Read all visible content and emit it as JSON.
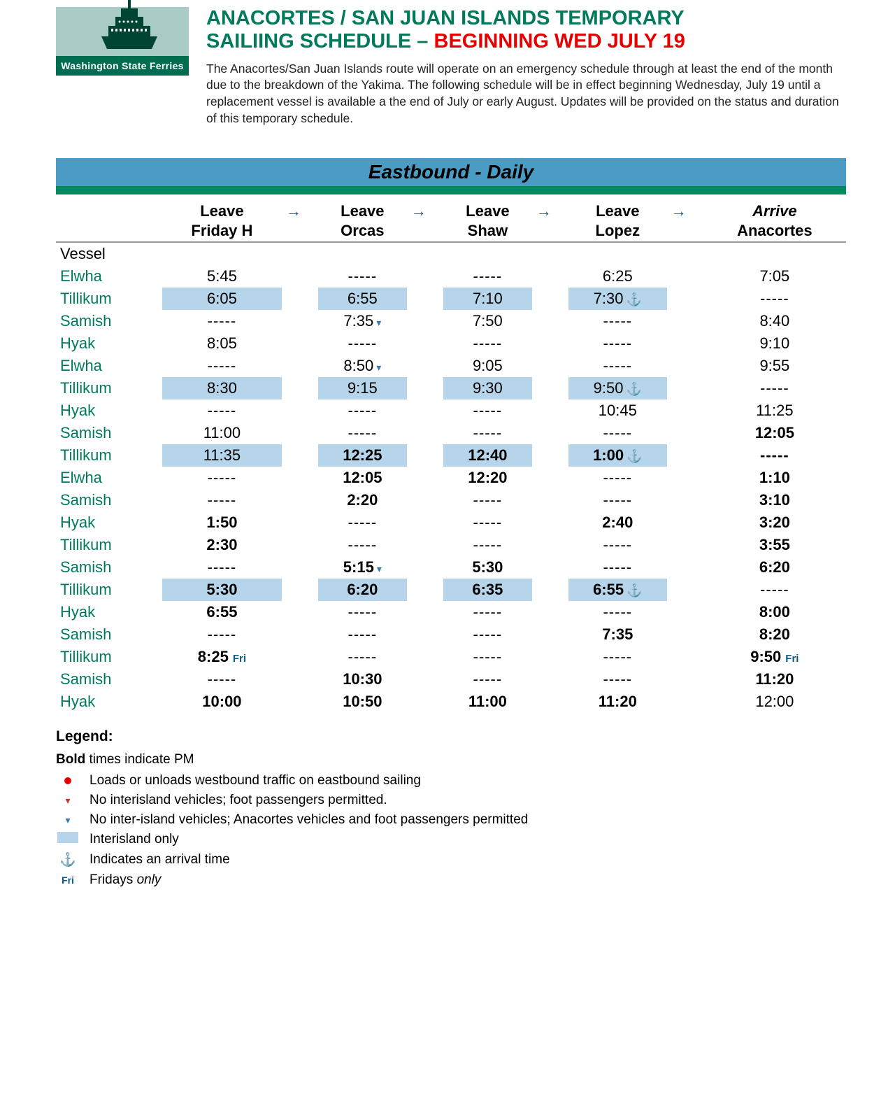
{
  "logo_caption": "Washington State Ferries",
  "title_line1": "ANACORTES / SAN JUAN ISLANDS TEMPORARY",
  "title_line2a": "SAILIING SCHEDULE – ",
  "title_line2b": "BEGINNING WED JULY 19",
  "intro": "The Anacortes/San Juan Islands route will operate on an emergency schedule through at least the end of the month due to the breakdown of the Yakima.  The following schedule will be in effect beginning Wednesday, July 19 until a replacement vessel is available a the end of July or early August.  Updates will be provided on the status and duration of this temporary schedule.",
  "banner": "Eastbound  - Daily",
  "columns": [
    {
      "top": "Leave",
      "bottom": "Friday H"
    },
    {
      "top": "Leave",
      "bottom": "Orcas"
    },
    {
      "top": "Leave",
      "bottom": "Shaw"
    },
    {
      "top": "Leave",
      "bottom": "Lopez"
    },
    {
      "top": "Arrive",
      "bottom": "Anacortes",
      "arrive": true
    }
  ],
  "vessel_header": "Vessel",
  "dash": "-----",
  "rows": [
    {
      "vessel": "Elwha",
      "hl": false,
      "c": [
        {
          "t": "5:45"
        },
        {
          "d": true
        },
        {
          "d": true
        },
        {
          "t": "6:25"
        },
        {
          "t": "7:05"
        }
      ]
    },
    {
      "vessel": "Tillikum",
      "hl": true,
      "c": [
        {
          "t": "6:05"
        },
        {
          "t": "6:55"
        },
        {
          "t": "7:10"
        },
        {
          "t": "7:30",
          "anchor": true
        },
        {
          "d": true,
          "nohl": true
        }
      ]
    },
    {
      "vessel": "Samish",
      "hl": false,
      "c": [
        {
          "d": true
        },
        {
          "t": "7:35",
          "caret": true
        },
        {
          "t": "7:50"
        },
        {
          "d": true
        },
        {
          "t": "8:40"
        }
      ]
    },
    {
      "vessel": "Hyak",
      "hl": false,
      "c": [
        {
          "t": "8:05"
        },
        {
          "d": true
        },
        {
          "d": true
        },
        {
          "d": true
        },
        {
          "t": "9:10"
        }
      ]
    },
    {
      "vessel": "Elwha",
      "hl": false,
      "c": [
        {
          "d": true
        },
        {
          "t": "8:50",
          "caret": true
        },
        {
          "t": "9:05"
        },
        {
          "d": true
        },
        {
          "t": "9:55"
        }
      ]
    },
    {
      "vessel": "Tillikum",
      "hl": true,
      "c": [
        {
          "t": "8:30"
        },
        {
          "t": "9:15"
        },
        {
          "t": "9:30"
        },
        {
          "t": "9:50",
          "anchor": true
        },
        {
          "d": true,
          "nohl": true
        }
      ]
    },
    {
      "vessel": "Hyak",
      "hl": false,
      "c": [
        {
          "d": true
        },
        {
          "d": true
        },
        {
          "d": true
        },
        {
          "t": "10:45"
        },
        {
          "t": "11:25"
        }
      ]
    },
    {
      "vessel": "Samish",
      "hl": false,
      "c": [
        {
          "t": "11:00"
        },
        {
          "d": true
        },
        {
          "d": true
        },
        {
          "d": true
        },
        {
          "t": "12:05",
          "b": true
        }
      ]
    },
    {
      "vessel": "Tillikum",
      "hl": true,
      "c": [
        {
          "t": "11:35"
        },
        {
          "t": "12:25",
          "b": true
        },
        {
          "t": "12:40",
          "b": true
        },
        {
          "t": "1:00",
          "b": true,
          "anchor": true
        },
        {
          "d": true,
          "b": true,
          "nohl": true
        }
      ]
    },
    {
      "vessel": "Elwha",
      "hl": false,
      "c": [
        {
          "d": true
        },
        {
          "t": "12:05",
          "b": true
        },
        {
          "t": "12:20",
          "b": true
        },
        {
          "d": true
        },
        {
          "t": "1:10",
          "b": true
        }
      ]
    },
    {
      "vessel": "Samish",
      "hl": false,
      "c": [
        {
          "d": true
        },
        {
          "t": "2:20",
          "b": true
        },
        {
          "d": true
        },
        {
          "d": true
        },
        {
          "t": "3:10",
          "b": true
        }
      ]
    },
    {
      "vessel": "Hyak",
      "hl": false,
      "c": [
        {
          "t": "1:50",
          "b": true
        },
        {
          "d": true
        },
        {
          "d": true
        },
        {
          "t": "2:40",
          "b": true
        },
        {
          "t": "3:20",
          "b": true
        }
      ]
    },
    {
      "vessel": "Tillikum",
      "hl": false,
      "c": [
        {
          "t": "2:30",
          "b": true
        },
        {
          "d": true
        },
        {
          "d": true
        },
        {
          "d": true
        },
        {
          "t": "3:55",
          "b": true
        }
      ]
    },
    {
      "vessel": "Samish",
      "hl": false,
      "c": [
        {
          "d": true
        },
        {
          "t": "5:15",
          "b": true,
          "caret": true
        },
        {
          "t": "5:30",
          "b": true
        },
        {
          "d": true
        },
        {
          "t": "6:20",
          "b": true
        }
      ]
    },
    {
      "vessel": "Tillikum",
      "hl": true,
      "c": [
        {
          "t": "5:30",
          "b": true
        },
        {
          "t": "6:20",
          "b": true
        },
        {
          "t": "6:35",
          "b": true
        },
        {
          "t": "6:55",
          "b": true,
          "anchor": true
        },
        {
          "d": true,
          "nohl": true
        }
      ]
    },
    {
      "vessel": "Hyak",
      "hl": false,
      "c": [
        {
          "t": "6:55",
          "b": true
        },
        {
          "d": true
        },
        {
          "d": true
        },
        {
          "d": true
        },
        {
          "t": "8:00",
          "b": true
        }
      ]
    },
    {
      "vessel": "Samish",
      "hl": false,
      "c": [
        {
          "d": true
        },
        {
          "d": true
        },
        {
          "d": true
        },
        {
          "t": "7:35",
          "b": true
        },
        {
          "t": "8:20",
          "b": true
        }
      ]
    },
    {
      "vessel": "Tillikum",
      "hl": false,
      "c": [
        {
          "t": "8:25",
          "b": true,
          "fri": true
        },
        {
          "d": true
        },
        {
          "d": true
        },
        {
          "d": true
        },
        {
          "t": "9:50",
          "b": true,
          "fri": true
        }
      ]
    },
    {
      "vessel": "Samish",
      "hl": false,
      "c": [
        {
          "d": true
        },
        {
          "t": "10:30",
          "b": true
        },
        {
          "d": true
        },
        {
          "d": true
        },
        {
          "t": "11:20",
          "b": true
        }
      ]
    },
    {
      "vessel": "Hyak",
      "hl": false,
      "c": [
        {
          "t": "10:00",
          "b": true
        },
        {
          "t": "10:50",
          "b": true
        },
        {
          "t": "11:00",
          "b": true
        },
        {
          "t": "11:20",
          "b": true
        },
        {
          "t": "12:00"
        }
      ]
    }
  ],
  "legend_title": "Legend:",
  "legend_bold_line_a": "Bold",
  "legend_bold_line_b": " times indicate PM",
  "legend_items": [
    {
      "sym": "red-dot",
      "text": "Loads or unloads westbound traffic on eastbound sailing"
    },
    {
      "sym": "tri-red",
      "text": "No interisland vehicles; foot passengers permitted."
    },
    {
      "sym": "tri-blue",
      "text": "No inter-island vehicles; Anacortes vehicles and foot passengers permitted"
    },
    {
      "sym": "box-blue",
      "text": "Interisland only"
    },
    {
      "sym": "anchor",
      "text": "Indicates an arrival time"
    },
    {
      "sym": "fri",
      "text": "Fridays only",
      "italic_word": "only"
    }
  ],
  "fri_label": "Fri"
}
